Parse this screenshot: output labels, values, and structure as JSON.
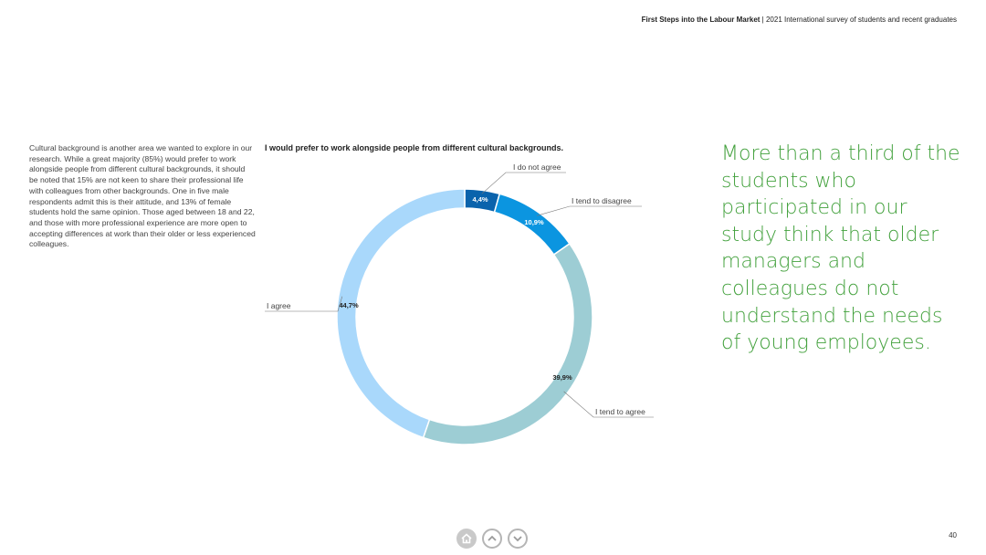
{
  "header": {
    "report_title": "First Steps into the Labour Market",
    "separator": " | ",
    "subtitle": "2021 International survey of students and recent graduates"
  },
  "body_text": "Cultural background is another area we wanted to explore in our research. While a great majority (85%) would prefer to work alongside people from different cultural backgrounds, it should be noted that 15% are not keen to share their professional life with colleagues from other backgrounds. One in five male respondents admit this is their attitude, and 13% of female students hold the same opinion. Those aged between 18 and 22, and those with more professional experience are more open to accepting differences at work than their older or less experienced colleagues.",
  "quote": "More than a third of the students who participated in our study think that older managers and colleagues do not understand the needs of young employees.",
  "chart_data": {
    "type": "pie",
    "title": "I would prefer to work alongside people from different cultural backgrounds.",
    "categories": [
      "I do not agree",
      "I tend to disagree",
      "I tend to agree",
      "I agree"
    ],
    "values": [
      4.4,
      10.9,
      39.9,
      44.7
    ],
    "value_labels": [
      "4,4%",
      "10,9%",
      "39,9%",
      "44,7%"
    ],
    "colors": [
      "#0a63ac",
      "#0b95e0",
      "#9dcdd4",
      "#a9d8fb"
    ],
    "label_colors": [
      "#ffffff",
      "#ffffff",
      "#222222",
      "#222222"
    ],
    "donut": true
  },
  "navigation": {
    "home_icon": "home-icon",
    "up_icon": "chevron-up-icon",
    "down_icon": "chevron-down-icon"
  },
  "page_number": "40"
}
